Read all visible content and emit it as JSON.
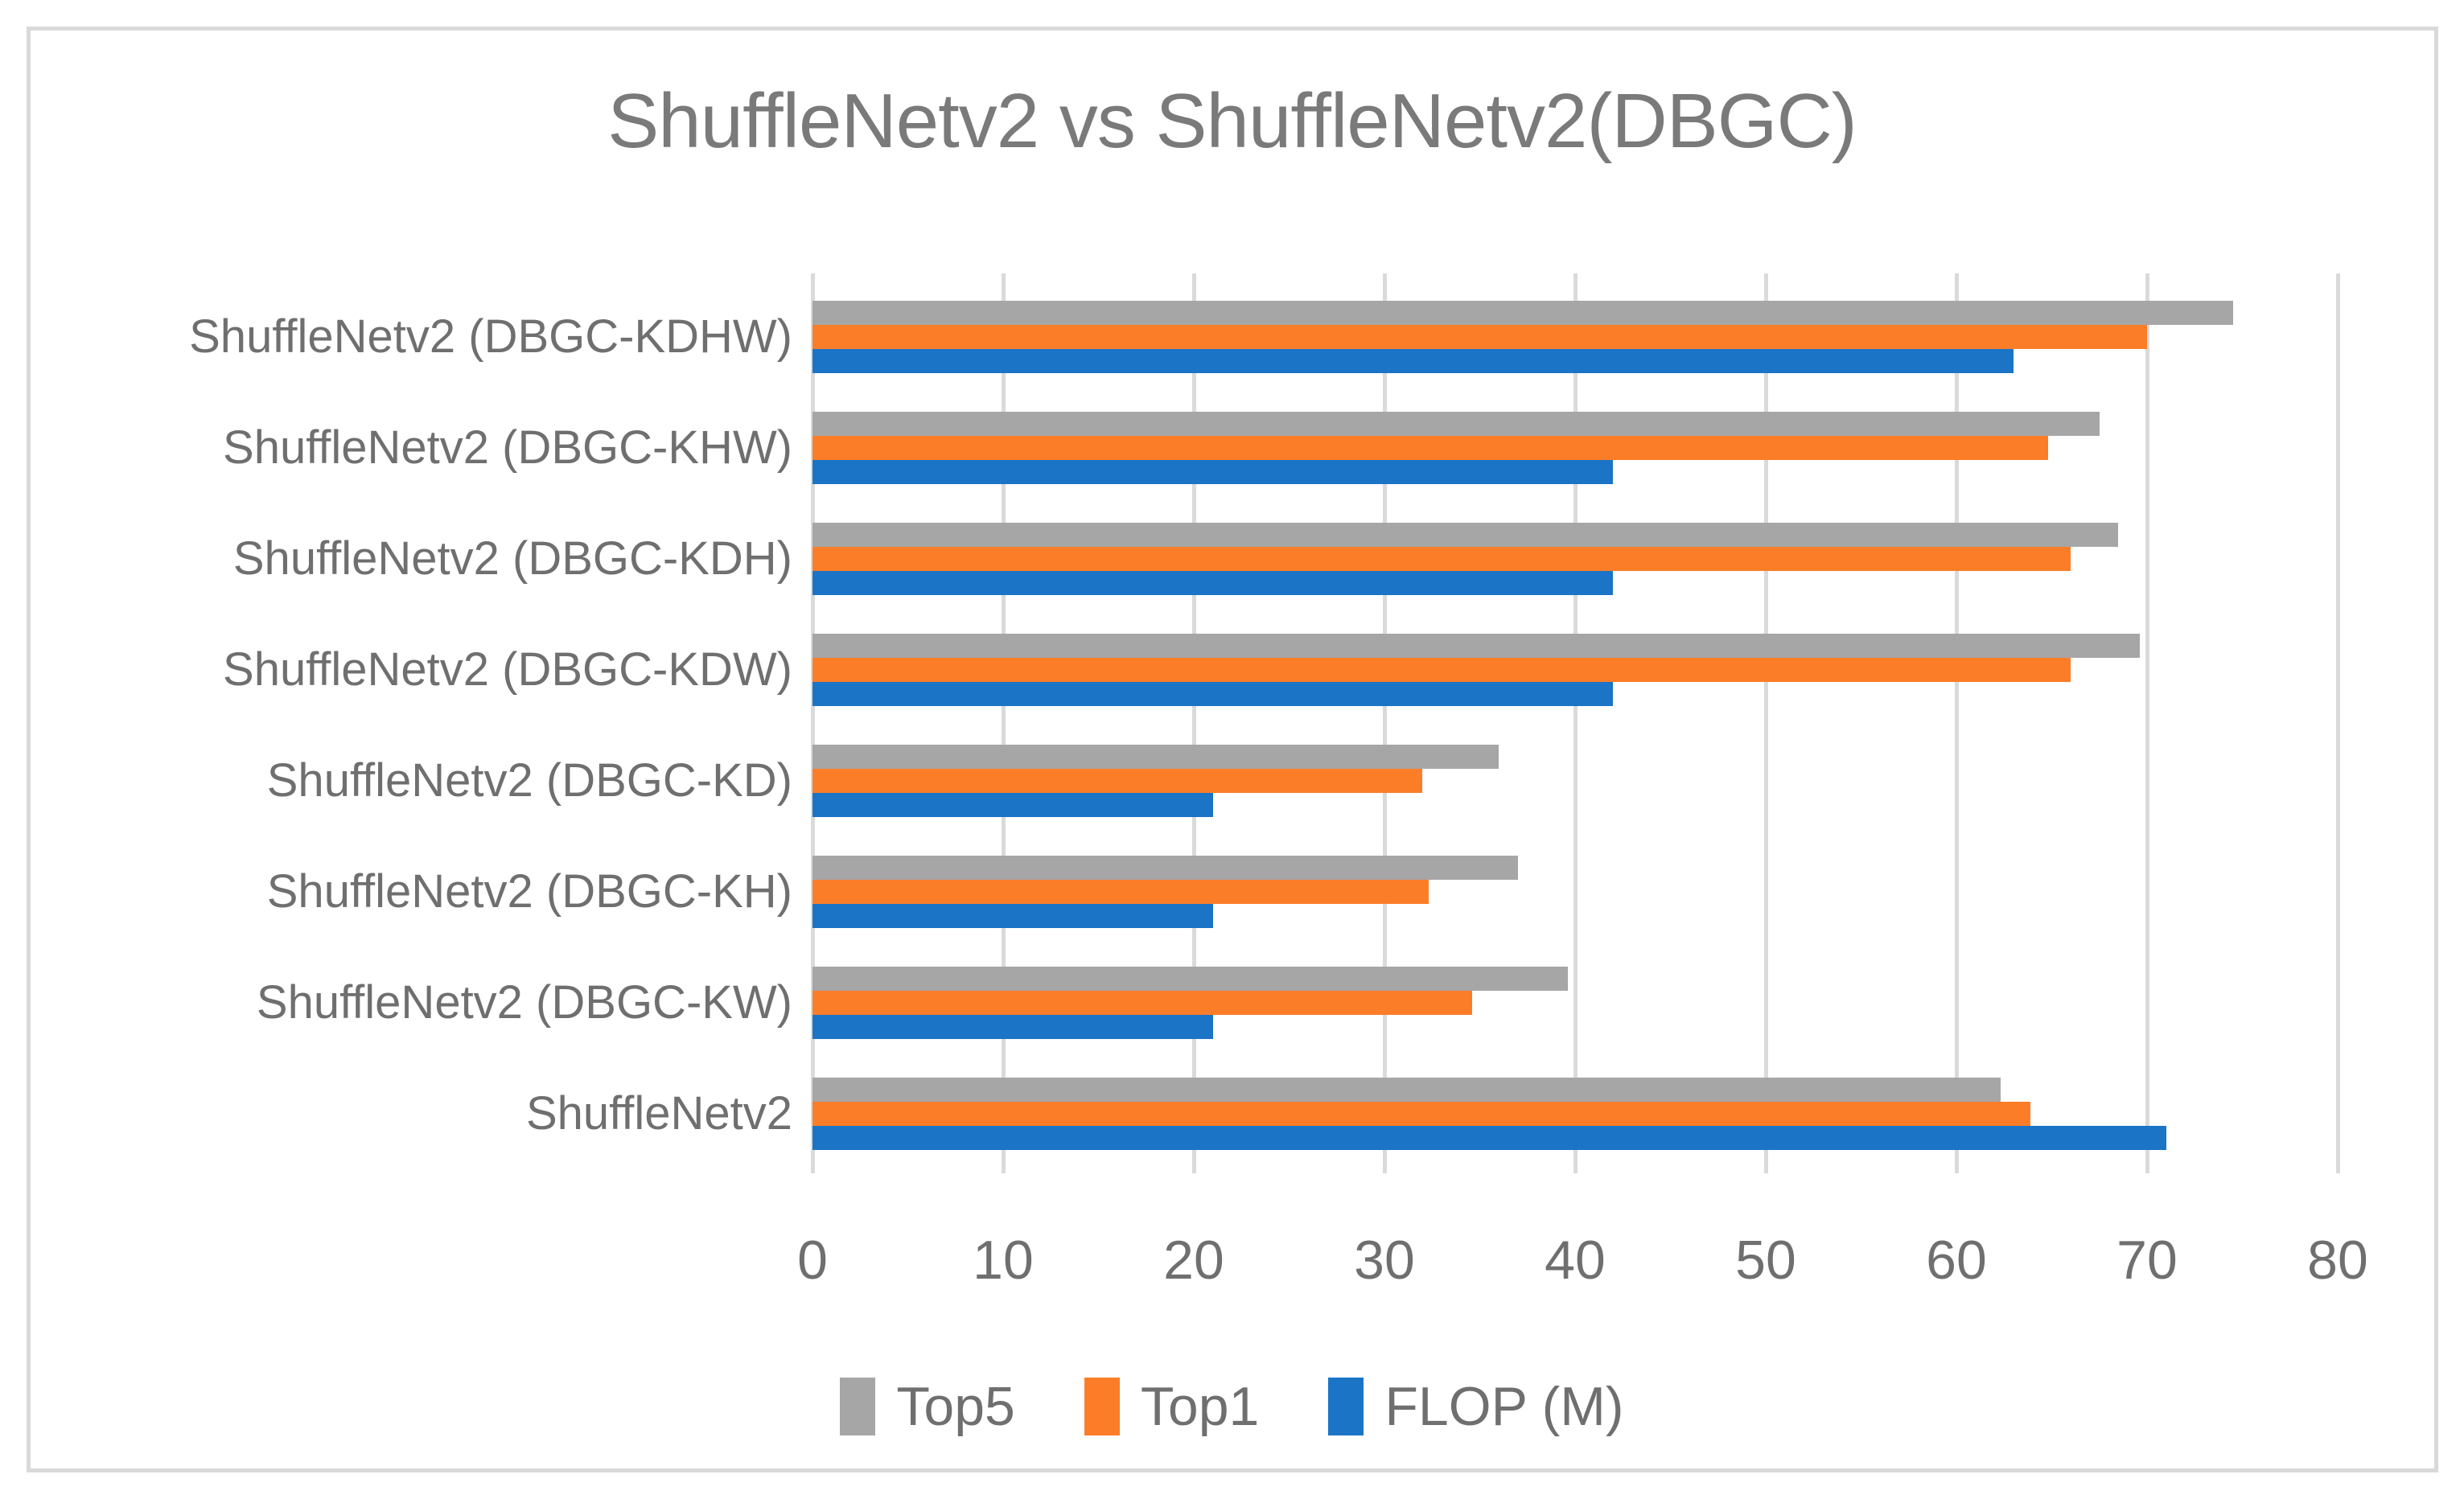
{
  "title": "ShuffleNetv2 vs ShuffleNetv2(DBGC)",
  "chart_data": {
    "type": "bar",
    "orientation": "horizontal",
    "title": "ShuffleNetv2 vs ShuffleNetv2(DBGC)",
    "categories": [
      "ShuffleNetv2 (DBGC-KDHW)",
      "ShuffleNetv2 (DBGC-KHW)",
      "ShuffleNetv2 (DBGC-KDH)",
      "ShuffleNetv2 (DBGC-KDW)",
      "ShuffleNetv2 (DBGC-KD)",
      "ShuffleNetv2 (DBGC-KH)",
      "ShuffleNetv2 (DBGC-KW)",
      "ShuffleNetv2"
    ],
    "series": [
      {
        "name": "Top5",
        "color": "#A6A6A6",
        "values": [
          74.5,
          67.5,
          68.5,
          69.6,
          36,
          37,
          39.6,
          62.3
        ]
      },
      {
        "name": "Top1",
        "color": "#FB7D28",
        "values": [
          70,
          64.8,
          66,
          66,
          32,
          32.3,
          34.6,
          63.9
        ]
      },
      {
        "name": "FLOP (M)",
        "color": "#1B74C5",
        "values": [
          63,
          42,
          42,
          42,
          21,
          21,
          21,
          71
        ]
      }
    ],
    "x_axis": {
      "min": 0,
      "max": 80,
      "tick_step": 10,
      "tick_labels": [
        "0",
        "10",
        "20",
        "30",
        "40",
        "50",
        "60",
        "70",
        "80"
      ]
    },
    "legend_position": "bottom",
    "grid": true
  },
  "colors": {
    "gridline": "#DADADA",
    "frame_border": "#D9D9D9",
    "text": "#6F6F6F",
    "title_text": "#7A7A7A",
    "background": "#FFFFFF"
  }
}
